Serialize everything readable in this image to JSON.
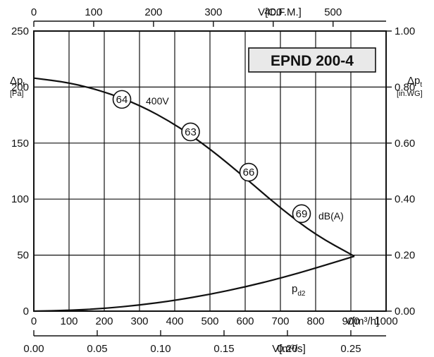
{
  "chart_data": {
    "type": "line",
    "title": "EPND 200-4",
    "x_primary": {
      "unit_label": "V[m³/h]",
      "ticks": [
        0,
        100,
        200,
        300,
        400,
        500,
        600,
        700,
        800,
        900,
        1000
      ],
      "range": [
        0,
        1000
      ]
    },
    "x_top": {
      "unit_label": "V[C.F.M.]",
      "ticks": [
        0,
        100,
        200,
        300,
        400,
        500
      ],
      "range": [
        0,
        588.6
      ]
    },
    "x_bottom2": {
      "unit_label": "V[m³/s]",
      "ticks": [
        "0.00",
        "0.05",
        "0.10",
        "0.15",
        "0.20",
        "0.25"
      ],
      "range": [
        0,
        0.2778
      ]
    },
    "y_left": {
      "label_main": "Δp",
      "label_sub": "t",
      "unit": "[Pa]",
      "ticks": [
        0,
        50,
        100,
        150,
        200,
        250
      ],
      "range": [
        0,
        250
      ]
    },
    "y_right": {
      "label_main": "Δp",
      "label_sub": "t",
      "unit": "[in.WG]",
      "ticks": [
        "0.00",
        "0.20",
        "0.40",
        "0.60",
        "0.80",
        "1.00"
      ],
      "range": [
        0,
        1.0
      ]
    },
    "grid": true,
    "series": [
      {
        "name": "400V",
        "x": [
          0,
          100,
          200,
          300,
          400,
          500,
          600,
          700,
          800,
          910
        ],
        "y": [
          208,
          204,
          196,
          184,
          167,
          145,
          119,
          92,
          68,
          49
        ]
      },
      {
        "name": "p",
        "name_sub": "d2",
        "x": [
          0,
          100,
          200,
          300,
          400,
          500,
          600,
          700,
          800,
          910
        ],
        "y": [
          0,
          0.6,
          2.4,
          5.4,
          9.6,
          15,
          21.6,
          29.4,
          38.4,
          49
        ]
      }
    ],
    "noise_label": "dB(A)",
    "noise_points": [
      {
        "x": 250,
        "y": 189,
        "value": "64"
      },
      {
        "x": 445,
        "y": 160,
        "value": "63"
      },
      {
        "x": 610,
        "y": 124,
        "value": "66"
      },
      {
        "x": 760,
        "y": 87,
        "value": "69"
      }
    ]
  }
}
